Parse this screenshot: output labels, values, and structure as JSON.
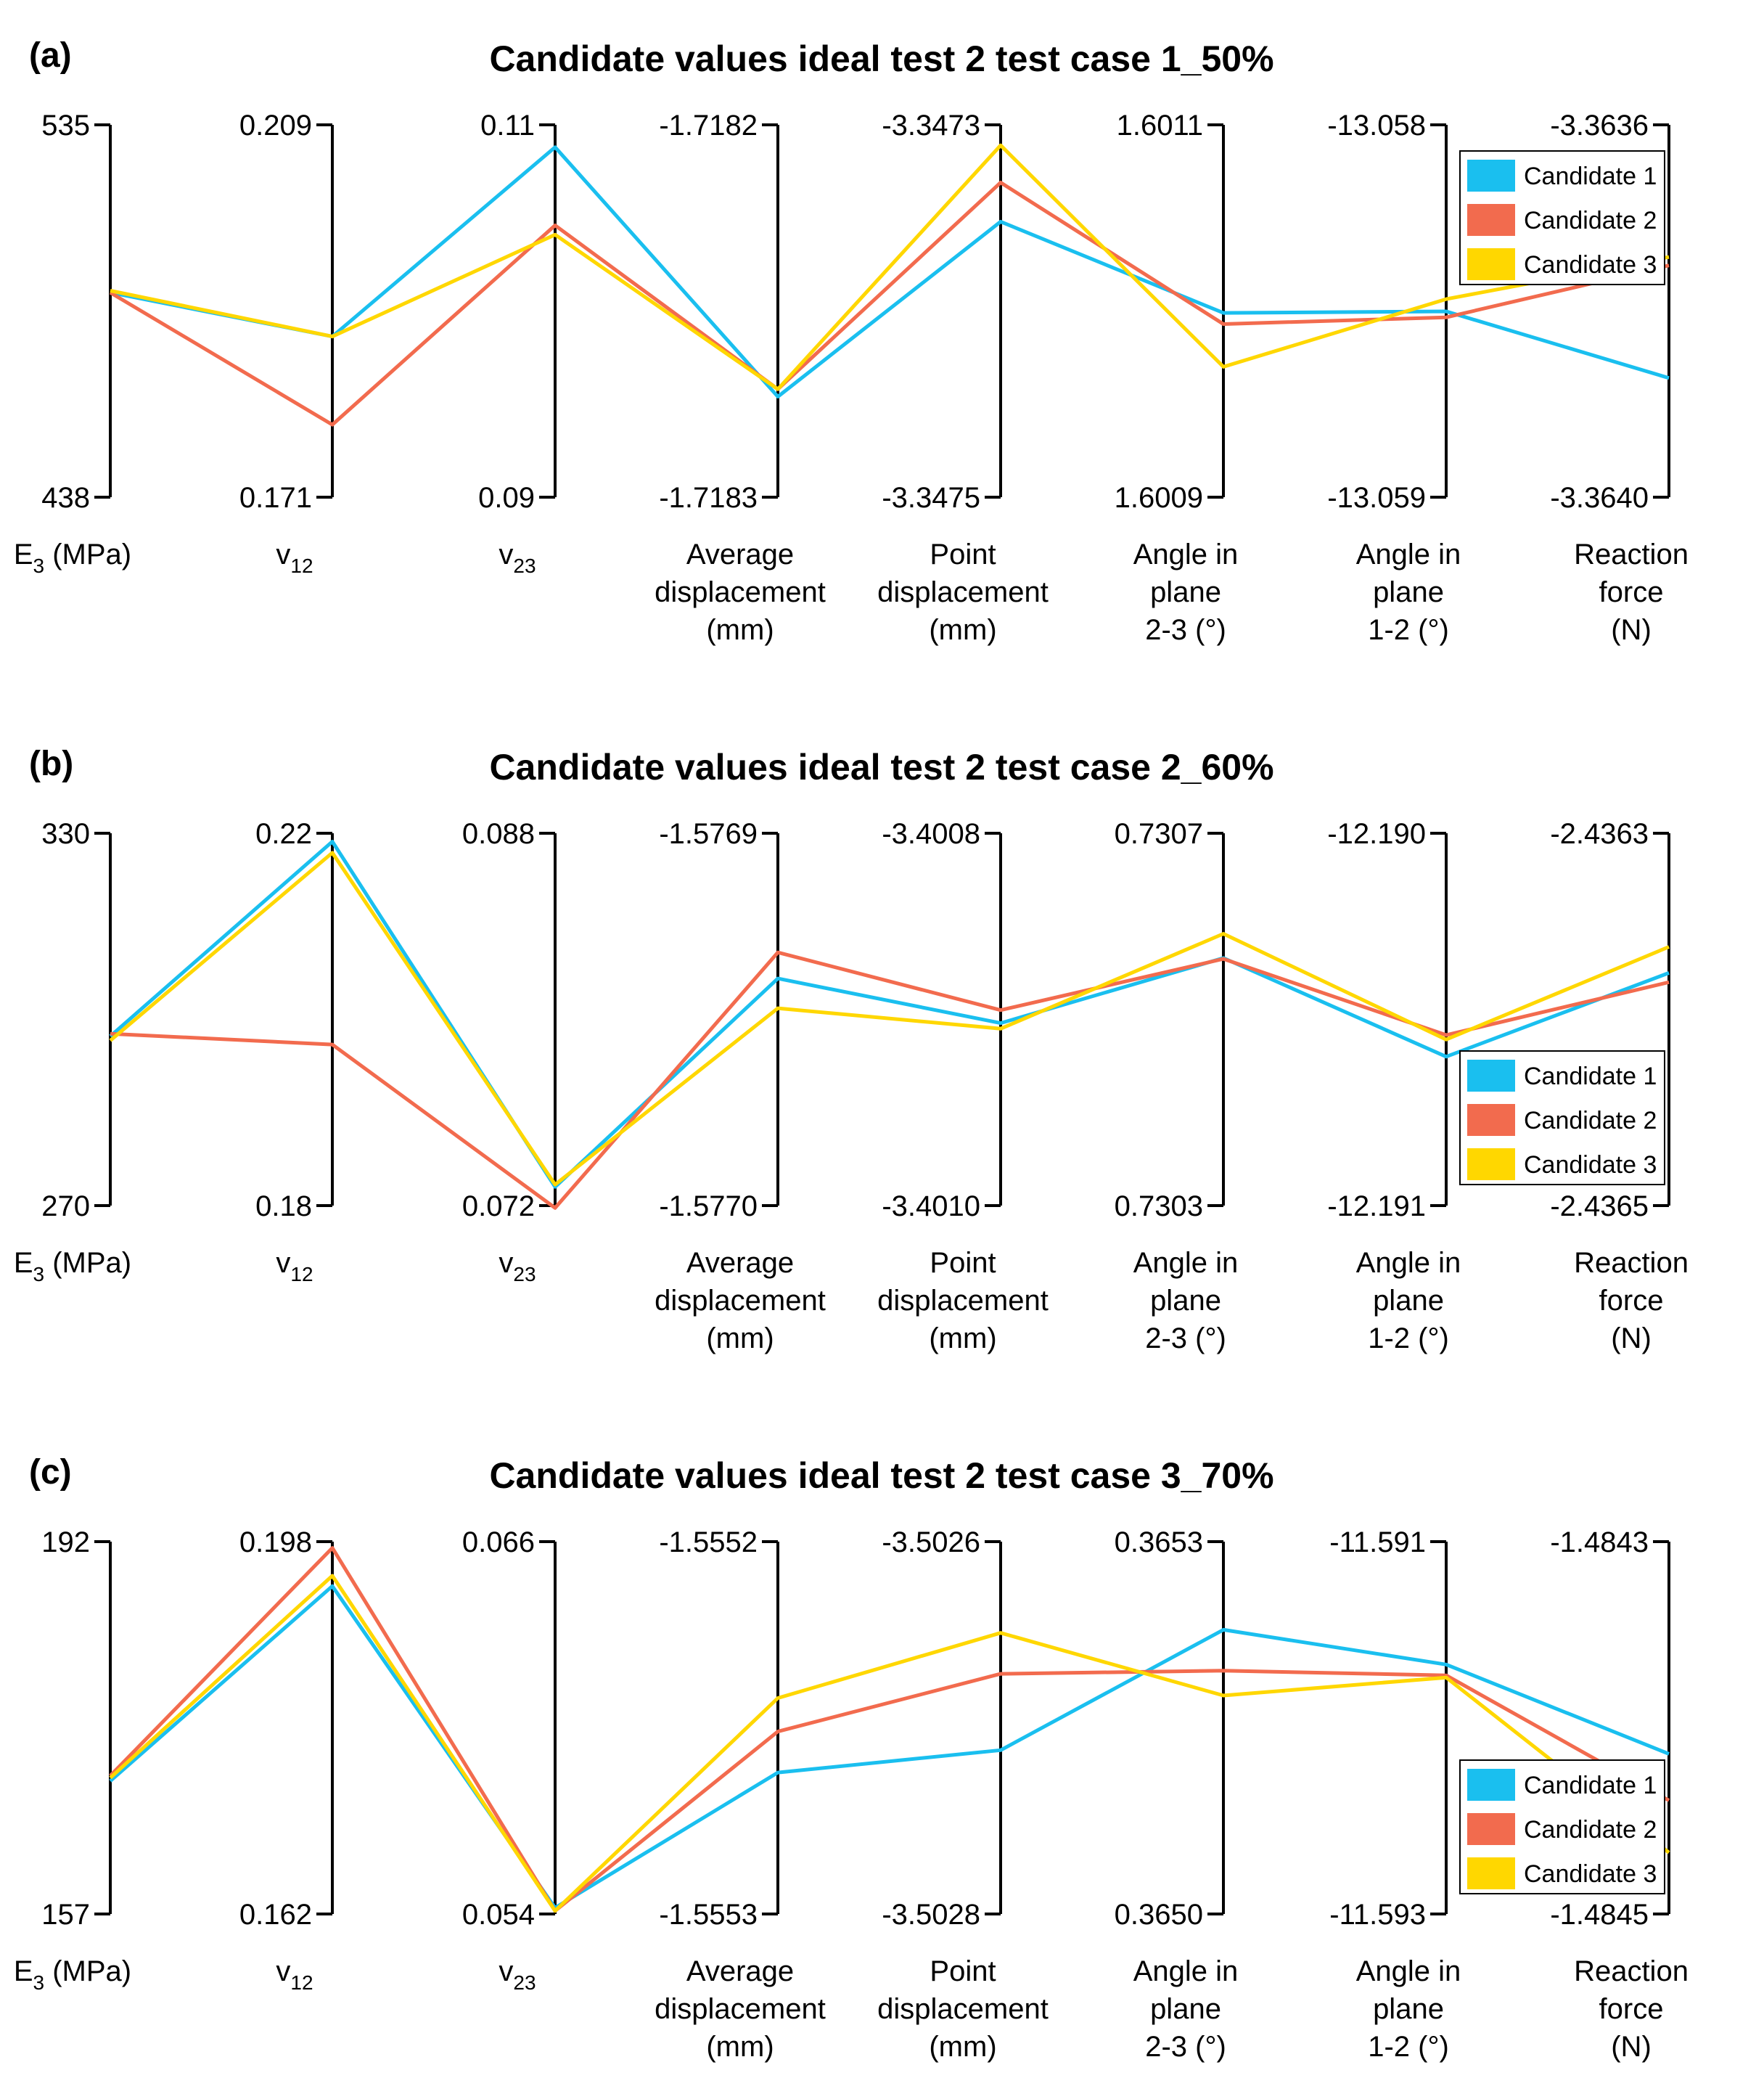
{
  "chart_data": [
    {
      "type": "parallel-coordinates",
      "panel": "(a)",
      "title": "Candidate values ideal test 2 test case 1_50%",
      "axes": [
        {
          "label": [
            "E",
            "3",
            " (MPa)"
          ],
          "max": 535,
          "min": 438,
          "max_label": "535",
          "min_label": "438"
        },
        {
          "label": [
            "v",
            "12",
            ""
          ],
          "max": 0.209,
          "min": 0.171,
          "max_label": "0.209",
          "min_label": "0.171"
        },
        {
          "label": [
            "v",
            "23",
            ""
          ],
          "max": 0.11,
          "min": 0.09,
          "max_label": "0.11",
          "min_label": "0.09"
        },
        {
          "label": [
            "Average",
            "displacement",
            "(mm)"
          ],
          "max": -1.7182,
          "min": -1.7183,
          "max_label": "-1.7182",
          "min_label": "-1.7183"
        },
        {
          "label": [
            "Point",
            "displacement",
            "(mm)"
          ],
          "max": -3.3473,
          "min": -3.3475,
          "max_label": "-3.3473",
          "min_label": "-3.3475"
        },
        {
          "label": [
            "Angle in",
            "plane",
            "2-3 (°)"
          ],
          "max": 1.6011,
          "min": 1.6009,
          "max_label": "1.6011",
          "min_label": "1.6009"
        },
        {
          "label": [
            "Angle in",
            "plane",
            "1-2 (°)"
          ],
          "max": -13.058,
          "min": -13.059,
          "max_label": "-13.058",
          "min_label": "-13.059"
        },
        {
          "label": [
            "Reaction",
            "force",
            "(N)"
          ],
          "max": -3.3636,
          "min": -3.364,
          "max_label": "-3.3636",
          "min_label": "-3.3640"
        }
      ],
      "legend_position": "top-right",
      "series": [
        {
          "name": "Candidate 1",
          "color": "#1ABFEF",
          "values": [
            491.3,
            0.1874,
            0.1088,
            -1.718273,
            -3.347352,
            1.600999,
            -13.058501,
            -3.363872
          ]
        },
        {
          "name": "Candidate 2",
          "color": "#F26B4E",
          "values": [
            491.3,
            0.1784,
            0.1046,
            -1.718271,
            -3.347331,
            1.600993,
            -13.058517,
            -3.363751
          ]
        },
        {
          "name": "Candidate 3",
          "color": "#FFD700",
          "values": [
            491.8,
            0.1874,
            0.1041,
            -1.718271,
            -3.347311,
            1.60097,
            -13.058468,
            -3.363742
          ]
        }
      ]
    },
    {
      "type": "parallel-coordinates",
      "panel": "(b)",
      "title": "Candidate values ideal test 2 test case 2_60%",
      "axes": [
        {
          "label": [
            "E",
            "3",
            " (MPa)"
          ],
          "max": 330,
          "min": 270,
          "max_label": "330",
          "min_label": "270"
        },
        {
          "label": [
            "v",
            "12",
            ""
          ],
          "max": 0.22,
          "min": 0.18,
          "max_label": "0.22",
          "min_label": "0.18"
        },
        {
          "label": [
            "v",
            "23",
            ""
          ],
          "max": 0.088,
          "min": 0.072,
          "max_label": "0.088",
          "min_label": "0.072"
        },
        {
          "label": [
            "Average",
            "displacement",
            "(mm)"
          ],
          "max": -1.5769,
          "min": -1.577,
          "max_label": "-1.5769",
          "min_label": "-1.5770"
        },
        {
          "label": [
            "Point",
            "displacement",
            "(mm)"
          ],
          "max": -3.4008,
          "min": -3.401,
          "max_label": "-3.4008",
          "min_label": "-3.4010"
        },
        {
          "label": [
            "Angle in",
            "plane",
            "2-3 (°)"
          ],
          "max": 0.7307,
          "min": 0.7303,
          "max_label": "0.7307",
          "min_label": "0.7303"
        },
        {
          "label": [
            "Angle in",
            "plane",
            "1-2 (°)"
          ],
          "max": -12.19,
          "min": -12.191,
          "max_label": "-12.190",
          "min_label": "-12.191"
        },
        {
          "label": [
            "Reaction",
            "force",
            "(N)"
          ],
          "max": -2.4363,
          "min": -2.4365,
          "max_label": "-2.4363",
          "min_label": "-2.4365"
        }
      ],
      "legend_position": "bottom-right",
      "series": [
        {
          "name": "Candidate 1",
          "color": "#1ABFEF",
          "values": [
            297.3,
            0.2191,
            0.0728,
            -1.576939,
            -3.400902,
            0.730566,
            -12.1906,
            -2.436375
          ]
        },
        {
          "name": "Candidate 2",
          "color": "#F26B4E",
          "values": [
            297.7,
            0.1973,
            0.0719,
            -1.576932,
            -3.400895,
            0.730565,
            -12.190542,
            -2.43638
          ]
        },
        {
          "name": "Candidate 3",
          "color": "#FFD700",
          "values": [
            296.6,
            0.2179,
            0.0729,
            -1.576947,
            -3.400905,
            0.730592,
            -12.190554,
            -2.436361
          ]
        }
      ]
    },
    {
      "type": "parallel-coordinates",
      "panel": "(c)",
      "title": "Candidate values ideal test 2 test case 3_70%",
      "axes": [
        {
          "label": [
            "E",
            "3",
            " (MPa)"
          ],
          "max": 192,
          "min": 157,
          "max_label": "192",
          "min_label": "157"
        },
        {
          "label": [
            "v",
            "12",
            ""
          ],
          "max": 0.198,
          "min": 0.162,
          "max_label": "0.198",
          "min_label": "0.162"
        },
        {
          "label": [
            "v",
            "23",
            ""
          ],
          "max": 0.066,
          "min": 0.054,
          "max_label": "0.066",
          "min_label": "0.054"
        },
        {
          "label": [
            "Average",
            "displacement",
            "(mm)"
          ],
          "max": -1.5552,
          "min": -1.5553,
          "max_label": "-1.5552",
          "min_label": "-1.5553"
        },
        {
          "label": [
            "Point",
            "displacement",
            "(mm)"
          ],
          "max": -3.5026,
          "min": -3.5028,
          "max_label": "-3.5026",
          "min_label": "-3.5028"
        },
        {
          "label": [
            "Angle in",
            "plane",
            "2-3 (°)"
          ],
          "max": 0.3653,
          "min": 0.365,
          "max_label": "0.3653",
          "min_label": "0.3650"
        },
        {
          "label": [
            "Angle in",
            "plane",
            "1-2 (°)"
          ],
          "max": -11.591,
          "min": -11.593,
          "max_label": "-11.591",
          "min_label": "-11.593"
        },
        {
          "label": [
            "Reaction",
            "force",
            "(N)"
          ],
          "max": -1.4843,
          "min": -1.4845,
          "max_label": "-1.4843",
          "min_label": "-1.4845"
        }
      ],
      "legend_position": "bottom-right",
      "series": [
        {
          "name": "Candidate 1",
          "color": "#1ABFEF",
          "values": [
            169.5,
            0.1937,
            0.0542,
            -1.555262,
            -3.502712,
            0.365229,
            -11.59166,
            -1.484414
          ]
        },
        {
          "name": "Candidate 2",
          "color": "#F26B4E",
          "values": [
            170.0,
            0.1974,
            0.0541,
            -1.555251,
            -3.502671,
            0.365196,
            -11.591718,
            -1.484439
          ]
        },
        {
          "name": "Candidate 3",
          "color": "#FFD700",
          "values": [
            169.8,
            0.1947,
            0.0541,
            -1.555242,
            -3.502649,
            0.365176,
            -11.59173,
            -1.484467
          ]
        }
      ]
    }
  ]
}
